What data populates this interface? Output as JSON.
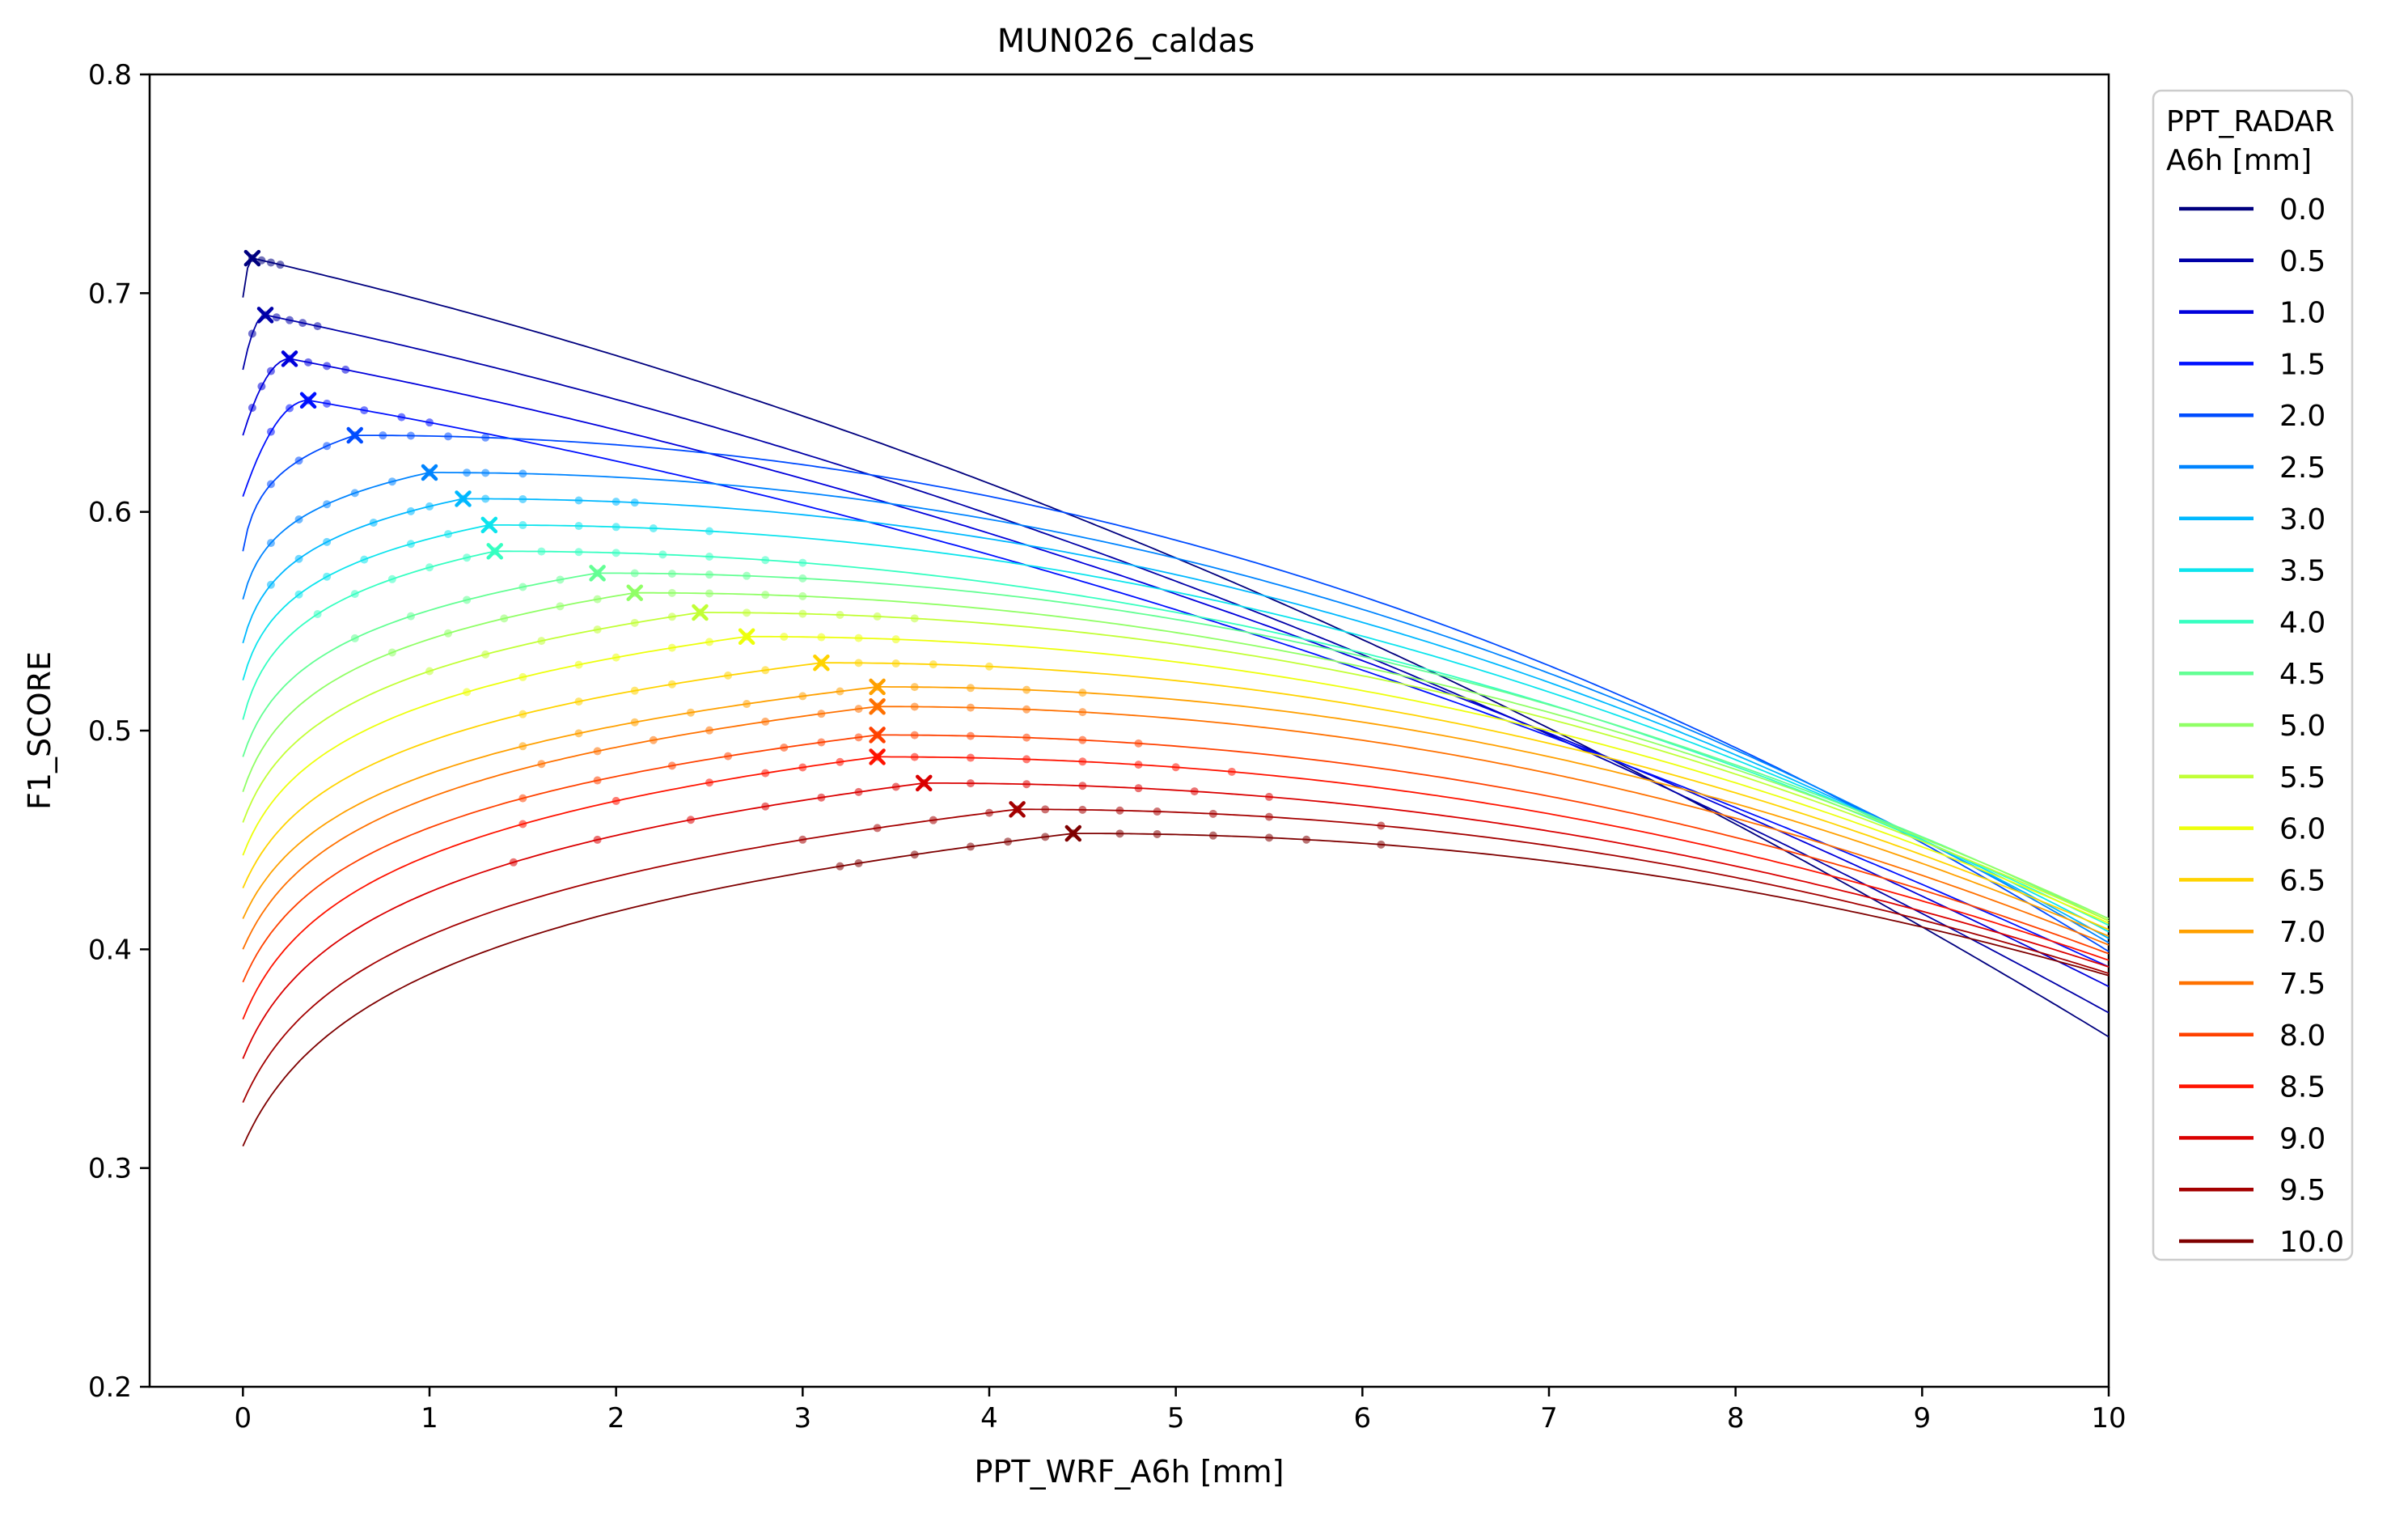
{
  "chart_data": {
    "type": "line",
    "title": "MUN026_caldas",
    "xlabel": "PPT_WRF_A6h [mm]",
    "ylabel": "F1_SCORE",
    "xlim": [
      -0.5,
      10
    ],
    "ylim": [
      0.2,
      0.8
    ],
    "x_ticks": [
      0,
      1,
      2,
      3,
      4,
      5,
      6,
      7,
      8,
      9,
      10
    ],
    "y_ticks": [
      0.2,
      0.3,
      0.4,
      0.5,
      0.6,
      0.7,
      0.8
    ],
    "grid": false,
    "legend": {
      "title_line1": "PPT_RADAR",
      "title_line2": "A6h [mm]",
      "placement": "outside-right-top"
    },
    "series": [
      {
        "name": "0.0",
        "color": "#00007f",
        "start": 0.698,
        "peak_x": 0.05,
        "peak_y": 0.716,
        "end": 0.36,
        "point_xs": [
          0.05,
          0.1,
          0.15,
          0.2
        ]
      },
      {
        "name": "0.5",
        "color": "#0000a8",
        "start": 0.665,
        "peak_x": 0.12,
        "peak_y": 0.69,
        "end": 0.371,
        "point_xs": [
          0.05,
          0.12,
          0.18,
          0.25,
          0.32,
          0.4
        ]
      },
      {
        "name": "1.0",
        "color": "#0000dc",
        "start": 0.635,
        "peak_x": 0.25,
        "peak_y": 0.67,
        "end": 0.383,
        "point_xs": [
          0.05,
          0.1,
          0.15,
          0.25,
          0.35,
          0.45,
          0.55
        ]
      },
      {
        "name": "1.5",
        "color": "#0010ff",
        "start": 0.607,
        "peak_x": 0.35,
        "peak_y": 0.651,
        "end": 0.392,
        "point_xs": [
          0.15,
          0.25,
          0.35,
          0.45,
          0.65,
          0.85,
          1.0
        ]
      },
      {
        "name": "2.0",
        "color": "#004cff",
        "start": 0.582,
        "peak_x": 0.6,
        "peak_y": 0.635,
        "end": 0.399,
        "point_xs": [
          0.15,
          0.3,
          0.45,
          0.6,
          0.75,
          0.9,
          1.1,
          1.3
        ]
      },
      {
        "name": "2.5",
        "color": "#0084ff",
        "start": 0.56,
        "peak_x": 1.0,
        "peak_y": 0.618,
        "end": 0.403,
        "point_xs": [
          0.15,
          0.3,
          0.45,
          0.6,
          0.8,
          1.0,
          1.2,
          1.3,
          1.5
        ]
      },
      {
        "name": "3.0",
        "color": "#00b8ff",
        "start": 0.54,
        "peak_x": 1.18,
        "peak_y": 0.606,
        "end": 0.405,
        "point_xs": [
          0.15,
          0.3,
          0.45,
          0.7,
          0.9,
          1.0,
          1.18,
          1.3,
          1.5,
          1.8,
          2.0,
          2.1
        ]
      },
      {
        "name": "3.5",
        "color": "#0ce4ed",
        "start": 0.523,
        "peak_x": 1.32,
        "peak_y": 0.594,
        "end": 0.408,
        "point_xs": [
          0.3,
          0.45,
          0.65,
          0.9,
          1.1,
          1.32,
          1.5,
          1.8,
          2.0,
          2.2,
          2.5
        ]
      },
      {
        "name": "4.0",
        "color": "#36ffc1",
        "start": 0.505,
        "peak_x": 1.35,
        "peak_y": 0.582,
        "end": 0.411,
        "point_xs": [
          0.4,
          0.6,
          0.8,
          1.0,
          1.2,
          1.35,
          1.6,
          1.8,
          2.0,
          2.25,
          2.5,
          2.8,
          3.0
        ]
      },
      {
        "name": "4.5",
        "color": "#63ff94",
        "start": 0.488,
        "peak_x": 1.9,
        "peak_y": 0.572,
        "end": 0.413,
        "point_xs": [
          0.6,
          0.9,
          1.2,
          1.5,
          1.7,
          1.9,
          2.1,
          2.3,
          2.5,
          2.7,
          3.0
        ]
      },
      {
        "name": "5.0",
        "color": "#90ff66",
        "start": 0.472,
        "peak_x": 2.1,
        "peak_y": 0.563,
        "end": 0.414,
        "point_xs": [
          0.8,
          1.1,
          1.4,
          1.7,
          1.9,
          2.1,
          2.3,
          2.5,
          2.8,
          3.0
        ]
      },
      {
        "name": "5.5",
        "color": "#c1ff36",
        "start": 0.458,
        "peak_x": 2.45,
        "peak_y": 0.554,
        "end": 0.413,
        "point_xs": [
          1.0,
          1.3,
          1.6,
          1.9,
          2.1,
          2.3,
          2.45,
          2.7,
          3.0,
          3.2,
          3.4,
          3.6
        ]
      },
      {
        "name": "6.0",
        "color": "#edff0c",
        "start": 0.443,
        "peak_x": 2.7,
        "peak_y": 0.543,
        "end": 0.412,
        "point_xs": [
          1.2,
          1.5,
          1.8,
          2.0,
          2.3,
          2.5,
          2.7,
          2.9,
          3.1,
          3.3,
          3.5
        ]
      },
      {
        "name": "6.5",
        "color": "#ffd300",
        "start": 0.428,
        "peak_x": 3.1,
        "peak_y": 0.531,
        "end": 0.409,
        "point_xs": [
          1.5,
          1.8,
          2.1,
          2.3,
          2.6,
          2.8,
          3.1,
          3.3,
          3.5,
          3.7,
          4.0
        ]
      },
      {
        "name": "7.0",
        "color": "#ffa000",
        "start": 0.414,
        "peak_x": 3.4,
        "peak_y": 0.52,
        "end": 0.406,
        "point_xs": [
          1.5,
          1.8,
          2.1,
          2.4,
          2.7,
          3.0,
          3.2,
          3.4,
          3.6,
          3.9,
          4.2,
          4.5
        ]
      },
      {
        "name": "7.5",
        "color": "#ff7100",
        "start": 0.4,
        "peak_x": 3.4,
        "peak_y": 0.511,
        "end": 0.402,
        "point_xs": [
          1.6,
          1.9,
          2.2,
          2.5,
          2.8,
          3.1,
          3.3,
          3.4,
          3.6,
          3.9,
          4.2,
          4.5
        ]
      },
      {
        "name": "8.0",
        "color": "#ff4100",
        "start": 0.385,
        "peak_x": 3.4,
        "peak_y": 0.498,
        "end": 0.398,
        "point_xs": [
          1.5,
          1.9,
          2.3,
          2.6,
          2.9,
          3.1,
          3.3,
          3.4,
          3.6,
          3.9,
          4.2,
          4.5,
          4.8
        ]
      },
      {
        "name": "8.5",
        "color": "#ff1300",
        "start": 0.368,
        "peak_x": 3.4,
        "peak_y": 0.488,
        "end": 0.395,
        "point_xs": [
          1.5,
          2.0,
          2.5,
          2.8,
          3.0,
          3.2,
          3.4,
          3.6,
          3.9,
          4.2,
          4.5,
          4.8,
          5.0,
          5.3
        ]
      },
      {
        "name": "9.0",
        "color": "#da0000",
        "start": 0.35,
        "peak_x": 3.65,
        "peak_y": 0.476,
        "end": 0.392,
        "point_xs": [
          1.45,
          1.9,
          2.4,
          2.8,
          3.1,
          3.3,
          3.5,
          3.65,
          3.9,
          4.2,
          4.5,
          4.8,
          5.1,
          5.5
        ]
      },
      {
        "name": "9.5",
        "color": "#a40000",
        "start": 0.33,
        "peak_x": 4.15,
        "peak_y": 0.464,
        "end": 0.389,
        "point_xs": [
          3.0,
          3.4,
          3.7,
          4.0,
          4.15,
          4.3,
          4.5,
          4.7,
          4.9,
          5.2,
          5.5,
          6.1
        ]
      },
      {
        "name": "10.0",
        "color": "#7f0000",
        "start": 0.31,
        "peak_x": 4.45,
        "peak_y": 0.453,
        "end": 0.388,
        "point_xs": [
          3.2,
          3.3,
          3.6,
          3.9,
          4.1,
          4.3,
          4.45,
          4.7,
          4.9,
          5.2,
          5.5,
          5.7,
          6.1
        ]
      }
    ]
  }
}
